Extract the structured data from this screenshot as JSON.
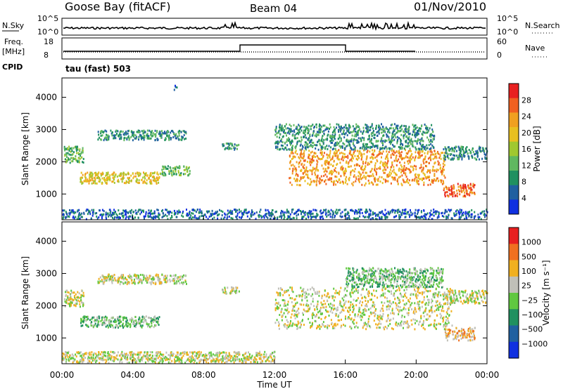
{
  "header": {
    "station": "Goose Bay (fitACF)",
    "beam": "Beam 04",
    "date": "01/Nov/2010"
  },
  "strips": {
    "nsky": {
      "label": "N.Sky",
      "ticks": [
        "10^5",
        "10^0"
      ],
      "right_ticks": [
        "10^5",
        "10^0"
      ],
      "right_label": "N.Search"
    },
    "freq": {
      "label_top": "Freq.",
      "label_unit": "[MHz]",
      "ticks": [
        "18",
        "8"
      ],
      "right_ticks": [
        "60",
        "0"
      ],
      "right_label": "Nave"
    },
    "cpid": {
      "label": "CPID",
      "program": "tau (fast) 503"
    }
  },
  "chart_data": [
    {
      "type": "heatmap",
      "name": "power",
      "ylabel": "Slant Range [km]",
      "yticks": [
        "4000",
        "3000",
        "2000",
        "1000"
      ],
      "ylim": [
        200,
        4600
      ],
      "xlim": [
        0,
        24
      ],
      "colorbar_label": "Power [dB]",
      "colorbar_ticks": [
        "28",
        "24",
        "20",
        "16",
        "12",
        "8",
        "4"
      ],
      "colors": [
        "#1030e0",
        "#2060a0",
        "#209060",
        "#60b860",
        "#a0c830",
        "#e8c020",
        "#f0a020",
        "#f06020",
        "#e82020"
      ],
      "regions": [
        {
          "t0": 0.1,
          "t1": 1.2,
          "r0": 2000,
          "r1": 2500,
          "level": 3
        },
        {
          "t0": 1.0,
          "t1": 5.5,
          "r0": 1350,
          "r1": 1700,
          "level": 5
        },
        {
          "t0": 2.0,
          "t1": 7.0,
          "r0": 2700,
          "r1": 3000,
          "level": 2
        },
        {
          "t0": 5.5,
          "t1": 7.2,
          "r0": 1600,
          "r1": 1900,
          "level": 3
        },
        {
          "t0": 9.0,
          "t1": 10.0,
          "r0": 2400,
          "r1": 2600,
          "level": 2
        },
        {
          "t0": 12.8,
          "t1": 21.6,
          "r0": 1300,
          "r1": 2400,
          "level": 6
        },
        {
          "t0": 12.0,
          "t1": 21.0,
          "r0": 2400,
          "r1": 3200,
          "level": 2
        },
        {
          "t0": 21.5,
          "t1": 23.3,
          "r0": 950,
          "r1": 1350,
          "level": 7
        },
        {
          "t0": 21.5,
          "t1": 24.0,
          "r0": 2100,
          "r1": 2500,
          "level": 2
        },
        {
          "t0": 0.0,
          "t1": 24.0,
          "r0": 250,
          "r1": 550,
          "level": 1
        },
        {
          "t0": 6.3,
          "t1": 6.5,
          "r0": 4250,
          "r1": 4400,
          "level": 1
        }
      ]
    },
    {
      "type": "heatmap",
      "name": "velocity",
      "ylabel": "Slant Range [km]",
      "yticks": [
        "4000",
        "3000",
        "2000",
        "1000"
      ],
      "ylim": [
        200,
        4600
      ],
      "xlim": [
        0,
        24
      ],
      "xticks": [
        "00:00",
        "04:00",
        "08:00",
        "12:00",
        "16:00",
        "20:00",
        "00:00"
      ],
      "xlabel": "Time UT",
      "colorbar_label": "Velocity [m s⁻¹]",
      "colorbar_ticks": [
        "1000",
        "500",
        "100",
        "25",
        "−25",
        "−100",
        "−500",
        "−1000"
      ],
      "colors": [
        "#1030e0",
        "#2060a0",
        "#209060",
        "#60c840",
        "#c0c0b8",
        "#f0b020",
        "#f07020",
        "#e82020"
      ],
      "regions": [
        {
          "t0": 0.1,
          "t1": 1.2,
          "r0": 2000,
          "r1": 2500,
          "level": 4
        },
        {
          "t0": 1.0,
          "t1": 5.5,
          "r0": 1350,
          "r1": 1700,
          "level": 3
        },
        {
          "t0": 2.0,
          "t1": 7.0,
          "r0": 2700,
          "r1": 3000,
          "level": 4
        },
        {
          "t0": 9.0,
          "t1": 10.0,
          "r0": 2400,
          "r1": 2600,
          "level": 4
        },
        {
          "t0": 12.0,
          "t1": 22.0,
          "r0": 1300,
          "r1": 2600,
          "level": 4
        },
        {
          "t0": 16.0,
          "t1": 21.5,
          "r0": 2600,
          "r1": 3200,
          "level": 3
        },
        {
          "t0": 21.6,
          "t1": 23.3,
          "r0": 950,
          "r1": 1350,
          "level": 5
        },
        {
          "t0": 21.5,
          "t1": 24.0,
          "r0": 2100,
          "r1": 2500,
          "level": 4
        },
        {
          "t0": 0.0,
          "t1": 12.0,
          "r0": 250,
          "r1": 600,
          "level": 4
        }
      ]
    }
  ]
}
